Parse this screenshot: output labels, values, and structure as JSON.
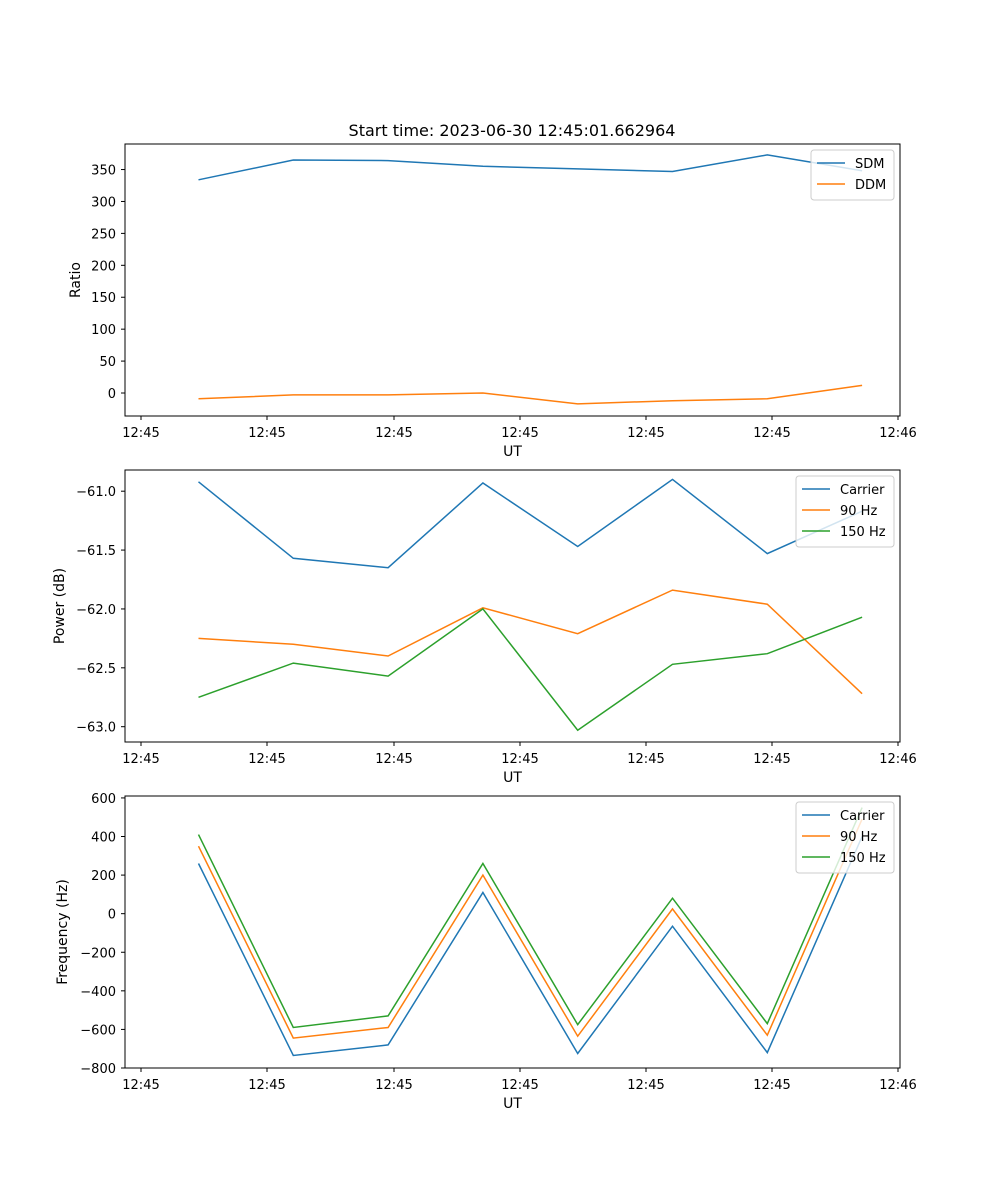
{
  "figure_title": "Start time: 2023-06-30 12:45:01.662964",
  "chart_data": [
    {
      "type": "line",
      "title": "Start time: 2023-06-30 12:45:01.662964",
      "xlabel": "UT",
      "ylabel": "Ratio",
      "x_tick_labels": [
        "12:45",
        "12:45",
        "12:45",
        "12:45",
        "12:45",
        "12:45",
        "12:46"
      ],
      "x": [
        1,
        2,
        3,
        4,
        5,
        6,
        7,
        8
      ],
      "y_ticks": [
        0,
        50,
        100,
        150,
        200,
        250,
        300,
        350
      ],
      "ylim": [
        -36,
        390
      ],
      "legend_position": "upper right",
      "grid": false,
      "series": [
        {
          "name": "SDM",
          "color": "#1f77b4",
          "values": [
            334,
            365,
            364,
            355,
            351,
            347,
            373,
            348
          ]
        },
        {
          "name": "DDM",
          "color": "#ff7f0e",
          "values": [
            -9,
            -3,
            -3,
            0,
            -17,
            -12,
            -9,
            12
          ]
        }
      ]
    },
    {
      "type": "line",
      "title": "",
      "xlabel": "UT",
      "ylabel": "Power (dB)",
      "x_tick_labels": [
        "12:45",
        "12:45",
        "12:45",
        "12:45",
        "12:45",
        "12:45",
        "12:46"
      ],
      "x": [
        1,
        2,
        3,
        4,
        5,
        6,
        7,
        8
      ],
      "y_ticks": [
        -63.0,
        -62.5,
        -62.0,
        -61.5,
        -61.0
      ],
      "y_tick_labels": [
        "−63.0",
        "−62.5",
        "−62.0",
        "−61.5",
        "−61.0"
      ],
      "ylim": [
        -63.13,
        -60.82
      ],
      "legend_position": "upper right",
      "grid": false,
      "series": [
        {
          "name": "Carrier",
          "color": "#1f77b4",
          "values": [
            -60.92,
            -61.57,
            -61.65,
            -60.93,
            -61.47,
            -60.9,
            -61.53,
            -61.17
          ]
        },
        {
          "name": "90 Hz",
          "color": "#ff7f0e",
          "values": [
            -62.25,
            -62.3,
            -62.4,
            -61.99,
            -62.21,
            -61.84,
            -61.96,
            -62.72
          ]
        },
        {
          "name": "150 Hz",
          "color": "#2ca02c",
          "values": [
            -62.75,
            -62.46,
            -62.57,
            -62.0,
            -63.03,
            -62.47,
            -62.38,
            -62.07
          ]
        }
      ]
    },
    {
      "type": "line",
      "title": "",
      "xlabel": "UT",
      "ylabel": "Frequency (Hz)",
      "x_tick_labels": [
        "12:45",
        "12:45",
        "12:45",
        "12:45",
        "12:45",
        "12:45",
        "12:46"
      ],
      "x": [
        1,
        2,
        3,
        4,
        5,
        6,
        7,
        8
      ],
      "y_ticks": [
        -800,
        -600,
        -400,
        -200,
        0,
        200,
        400,
        600
      ],
      "y_tick_labels": [
        "−800",
        "−600",
        "−400",
        "−200",
        "0",
        "200",
        "400",
        "600"
      ],
      "ylim": [
        -800,
        610
      ],
      "legend_position": "upper right",
      "grid": false,
      "series": [
        {
          "name": "Carrier",
          "color": "#1f77b4",
          "values": [
            260,
            -735,
            -680,
            110,
            -725,
            -65,
            -720,
            400
          ]
        },
        {
          "name": "90 Hz",
          "color": "#ff7f0e",
          "values": [
            350,
            -645,
            -590,
            200,
            -635,
            25,
            -630,
            490
          ]
        },
        {
          "name": "150 Hz",
          "color": "#2ca02c",
          "values": [
            410,
            -590,
            -530,
            260,
            -575,
            80,
            -570,
            550
          ]
        }
      ]
    }
  ]
}
